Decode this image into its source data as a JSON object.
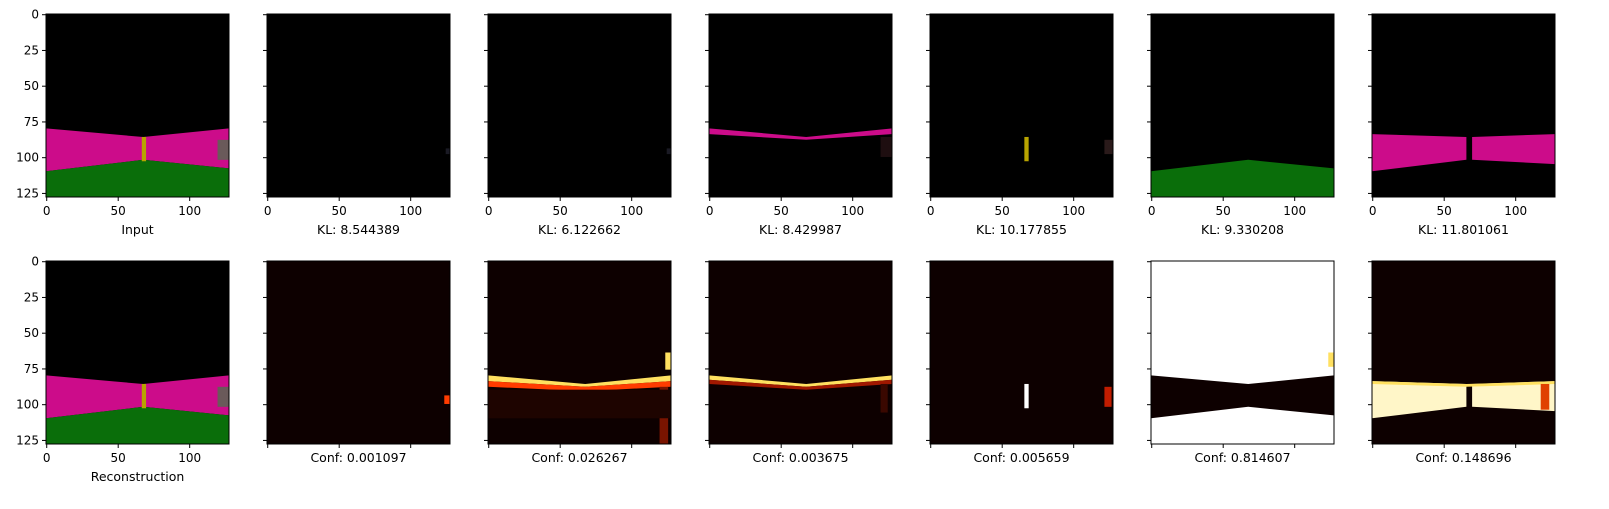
{
  "chart_data": {
    "type": "image-grid",
    "image_extent": [
      0,
      127
    ],
    "x_ticks": [
      0,
      50,
      100
    ],
    "y_ticks": [
      0,
      25,
      50,
      75,
      100,
      125
    ],
    "colormap": "hot",
    "rows": [
      {
        "kind": "rgb",
        "panels": [
          {
            "label": "Input",
            "scene": "full"
          },
          {
            "label": "KL: 8.544389",
            "scene": "empty"
          },
          {
            "label": "KL: 6.122662",
            "scene": "empty"
          },
          {
            "label": "KL: 8.429987",
            "scene": "edge"
          },
          {
            "label": "KL: 10.177855",
            "scene": "pole"
          },
          {
            "label": "KL: 9.330208",
            "scene": "ground"
          },
          {
            "label": "KL: 11.801061",
            "scene": "road"
          }
        ]
      },
      {
        "kind": "heatmap",
        "panels": [
          {
            "label": "Reconstruction",
            "scene": "full"
          },
          {
            "label": "Conf: 0.001097",
            "scene": "heat-faint"
          },
          {
            "label": "Conf: 0.026267",
            "scene": "heat-edge"
          },
          {
            "label": "Conf: 0.003675",
            "scene": "heat-edge-thin"
          },
          {
            "label": "Conf: 0.005659",
            "scene": "heat-pole"
          },
          {
            "label": "Conf: 0.814607",
            "scene": "heat-ground"
          },
          {
            "label": "Conf: 0.148696",
            "scene": "heat-road"
          }
        ]
      }
    ],
    "colors": {
      "road": "#cc0c8a",
      "ground": "#0a6e0a",
      "pole": "#b8a400",
      "background": "#000000",
      "heat_dark": "#0d0000",
      "heat_mid": "#ff3c00",
      "heat_hot": "#ffe060",
      "heat_white": "#ffffff"
    }
  }
}
